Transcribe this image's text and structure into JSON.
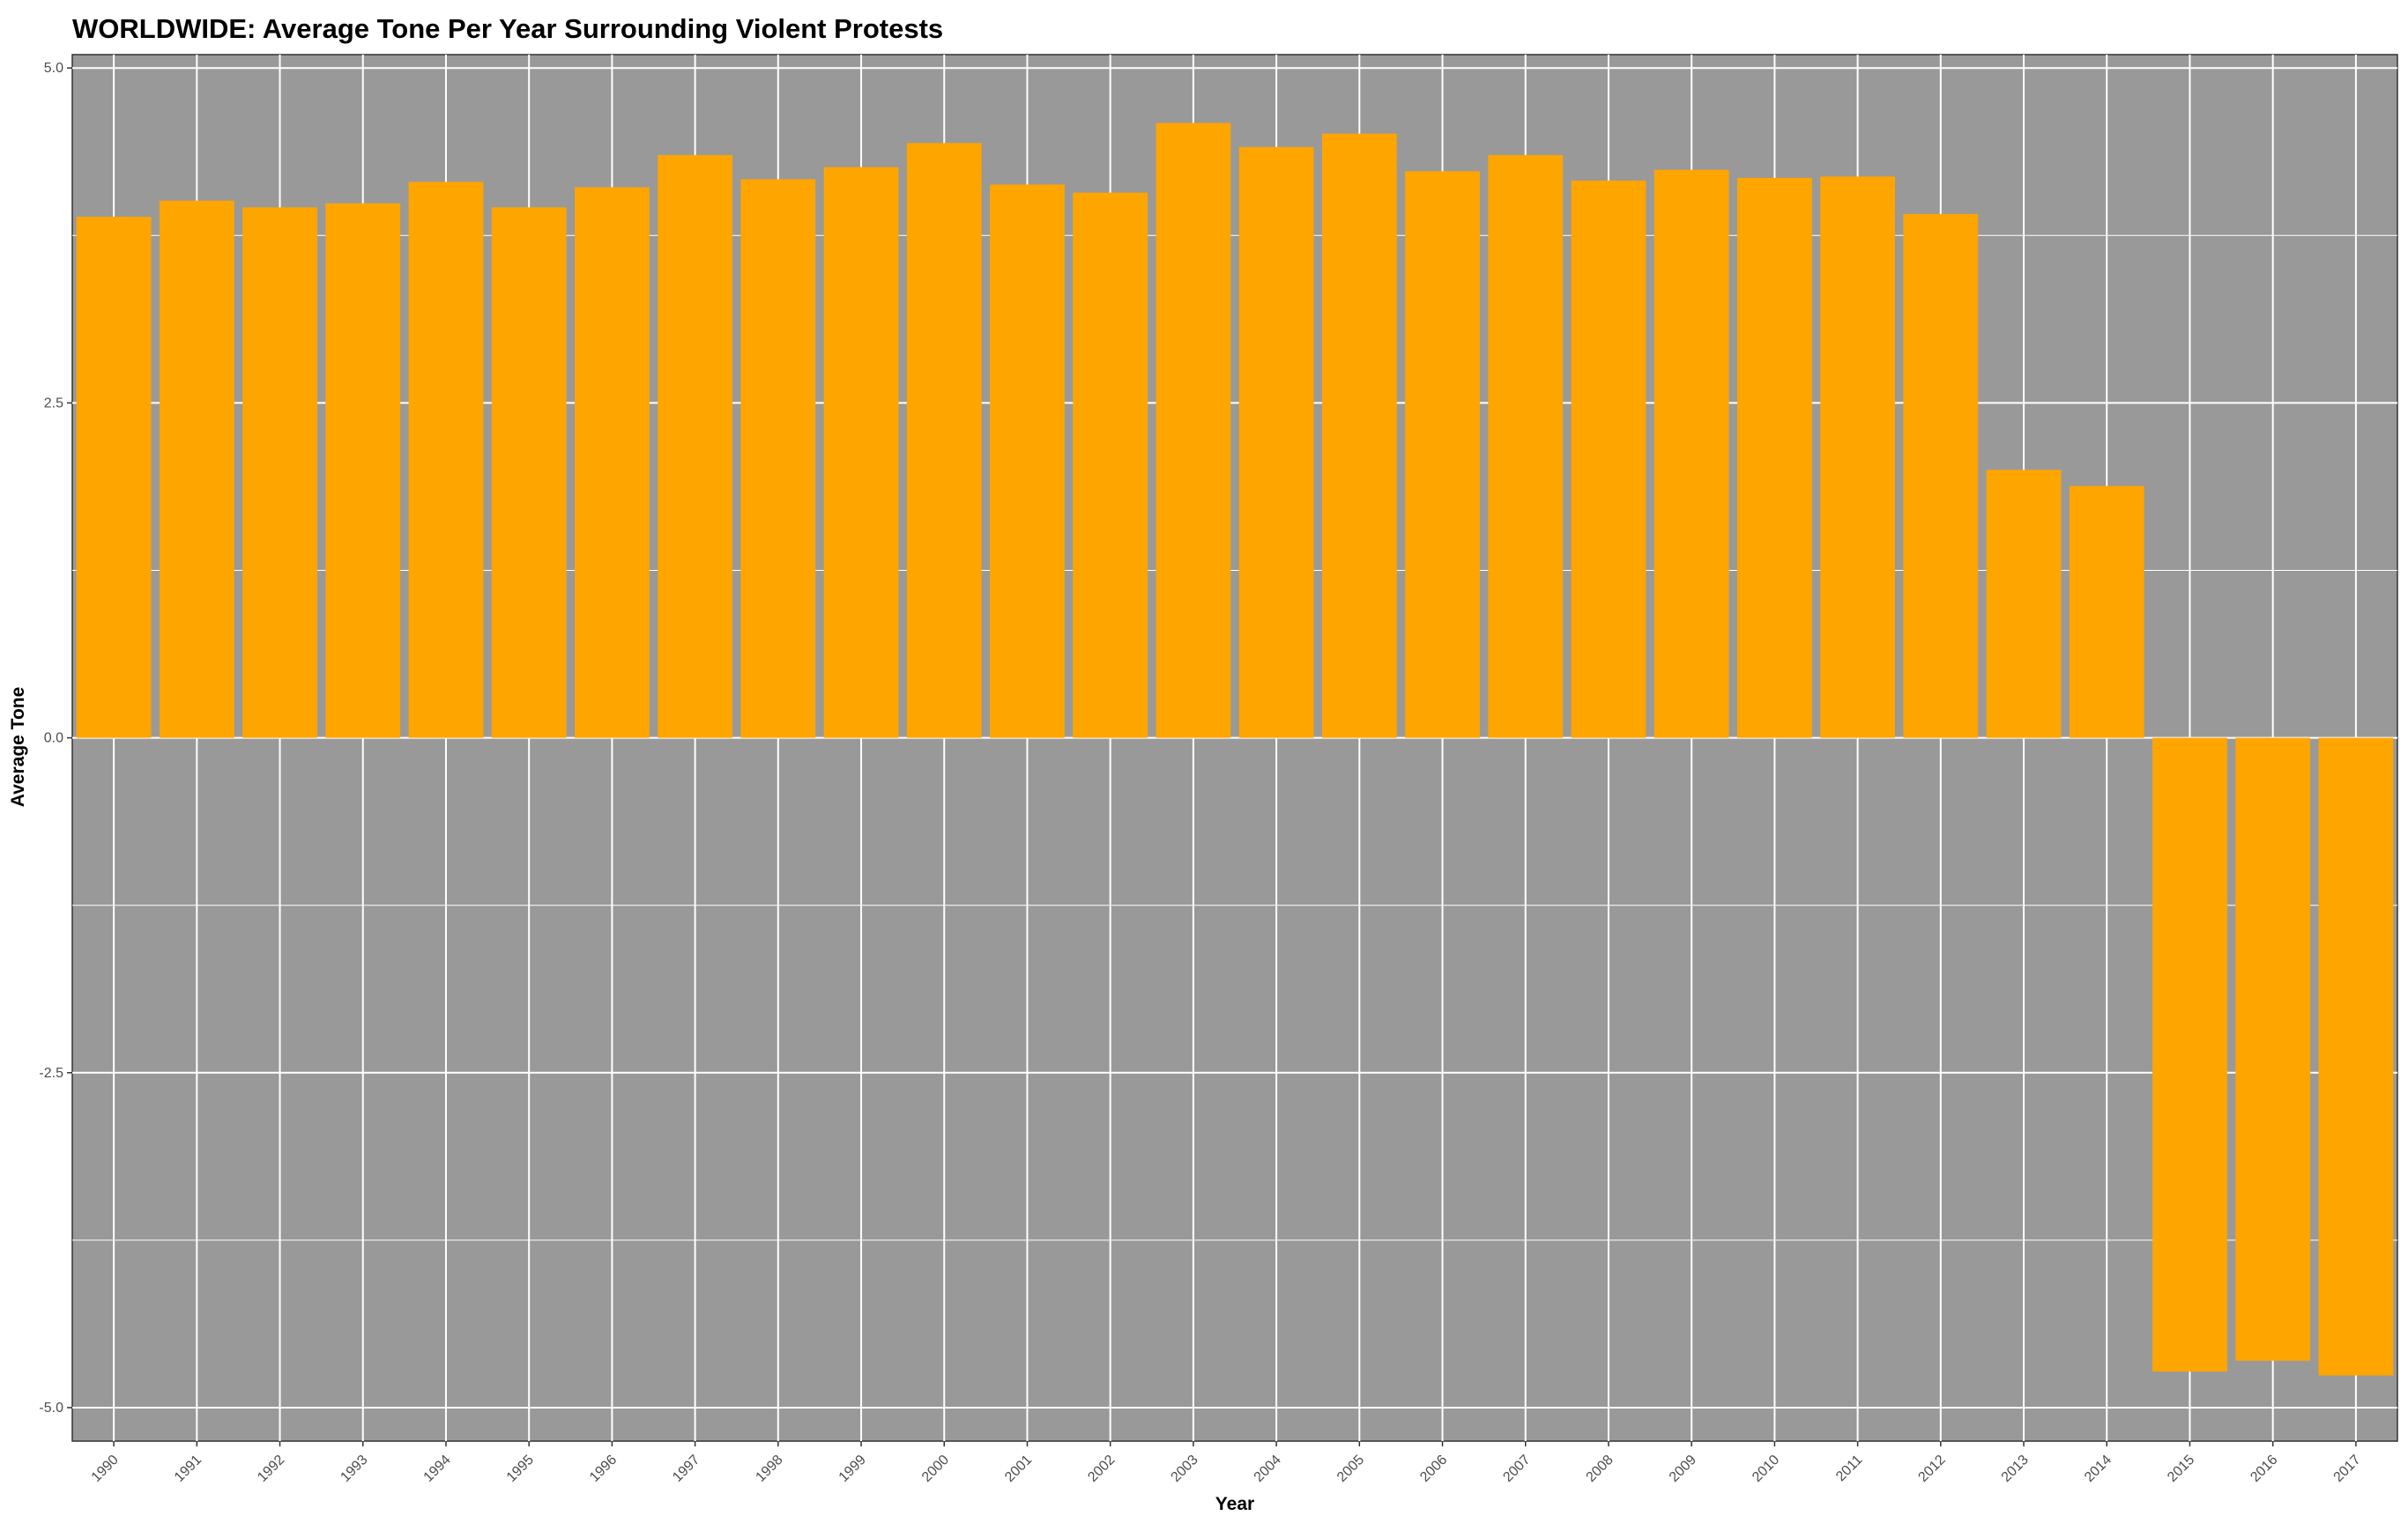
{
  "chart_data": {
    "type": "bar",
    "title": "WORLDWIDE: Average Tone Per Year Surrounding Violent Protests",
    "xlabel": "Year",
    "ylabel": "Average Tone",
    "categories": [
      "1990",
      "1991",
      "1992",
      "1993",
      "1994",
      "1995",
      "1996",
      "1997",
      "1998",
      "1999",
      "2000",
      "2001",
      "2002",
      "2003",
      "2004",
      "2005",
      "2006",
      "2007",
      "2008",
      "2009",
      "2010",
      "2011",
      "2012",
      "2013",
      "2014",
      "2015",
      "2016",
      "2017"
    ],
    "values": [
      3.89,
      4.01,
      3.96,
      3.99,
      4.15,
      3.96,
      4.11,
      4.35,
      4.17,
      4.26,
      4.44,
      4.13,
      4.07,
      4.59,
      4.41,
      4.51,
      4.23,
      4.35,
      4.16,
      4.24,
      4.18,
      4.19,
      3.91,
      2.0,
      1.88,
      -4.73,
      -4.65,
      -4.76
    ],
    "ylim": [
      -5.25,
      5.1
    ],
    "yticks": [
      5.0,
      2.5,
      0.0,
      -2.5,
      -5.0
    ],
    "ytick_labels": [
      "5.0",
      "2.5",
      "0.0",
      "-2.5",
      "-5.0"
    ],
    "grid": true,
    "legend": "none",
    "colors": {
      "bar": "#FFA500",
      "panel": "#999999",
      "grid": "#ffffff",
      "background": "#ffffff"
    }
  }
}
